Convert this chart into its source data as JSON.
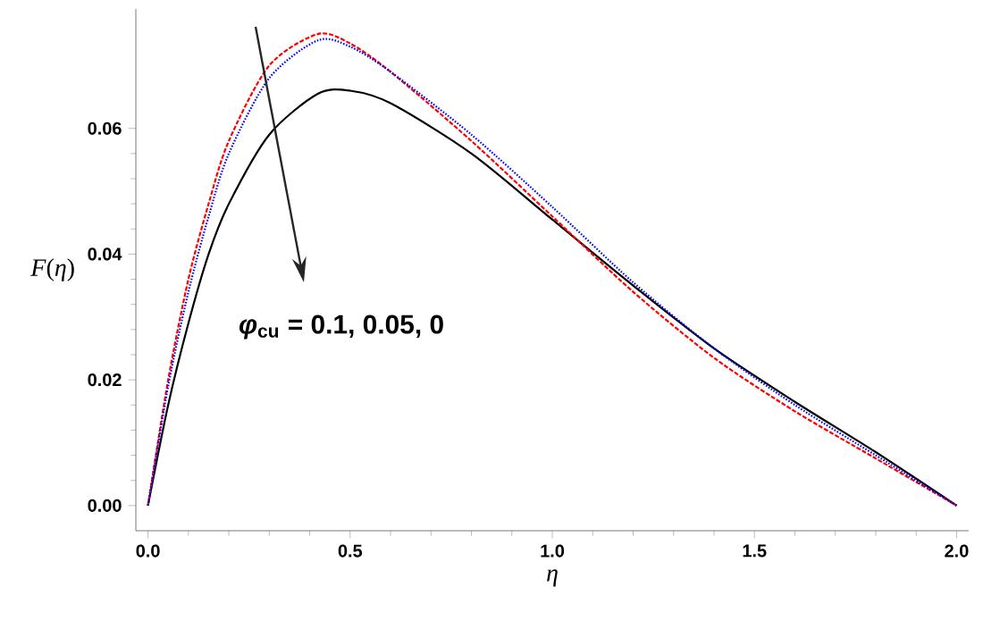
{
  "chart_data": {
    "type": "line",
    "xlabel": "η",
    "ylabel": "*F*(*η*)",
    "xlim": [
      -0.03,
      2.03
    ],
    "ylim": [
      -0.004,
      0.079
    ],
    "xticks": [
      {
        "value": 0,
        "label": "0.0"
      },
      {
        "value": 0.5,
        "label": "0.5"
      },
      {
        "value": 1,
        "label": "1.0"
      },
      {
        "value": 1.5,
        "label": "1.5"
      },
      {
        "value": 2,
        "label": "2.0"
      }
    ],
    "yticks": [
      {
        "value": 0,
        "label": "0.00"
      },
      {
        "value": 0.02,
        "label": "0.02"
      },
      {
        "value": 0.04,
        "label": "0.04"
      },
      {
        "value": 0.06,
        "label": "0.06"
      }
    ],
    "grid": false,
    "marker": "none",
    "x": [
      0,
      0.05,
      0.1,
      0.15,
      0.2,
      0.3,
      0.42,
      0.5,
      0.6,
      0.8,
      1.0,
      1.2,
      1.4,
      1.6,
      1.8,
      2.0
    ],
    "series": [
      {
        "color": "#ff0000",
        "line_style": "dashed",
        "values": [
          0,
          0.02,
          0.036,
          0.048,
          0.058,
          0.07,
          0.075,
          0.0735,
          0.069,
          0.058,
          0.046,
          0.034,
          0.0235,
          0.015,
          0.0075,
          0
        ]
      },
      {
        "color": "#0000ff",
        "line_style": "dotted",
        "values": [
          0,
          0.019,
          0.034,
          0.046,
          0.056,
          0.068,
          0.074,
          0.073,
          0.069,
          0.059,
          0.0475,
          0.0355,
          0.025,
          0.016,
          0.008,
          0
        ]
      },
      {
        "color": "#000000",
        "line_style": "solid",
        "values": [
          0,
          0.016,
          0.029,
          0.04,
          0.048,
          0.059,
          0.0655,
          0.066,
          0.064,
          0.056,
          0.0455,
          0.035,
          0.025,
          0.0165,
          0.0085,
          0
        ]
      }
    ],
    "annotations": [
      "*φ*$_{cu}$ = 0.1, 0.05, 0"
    ]
  }
}
